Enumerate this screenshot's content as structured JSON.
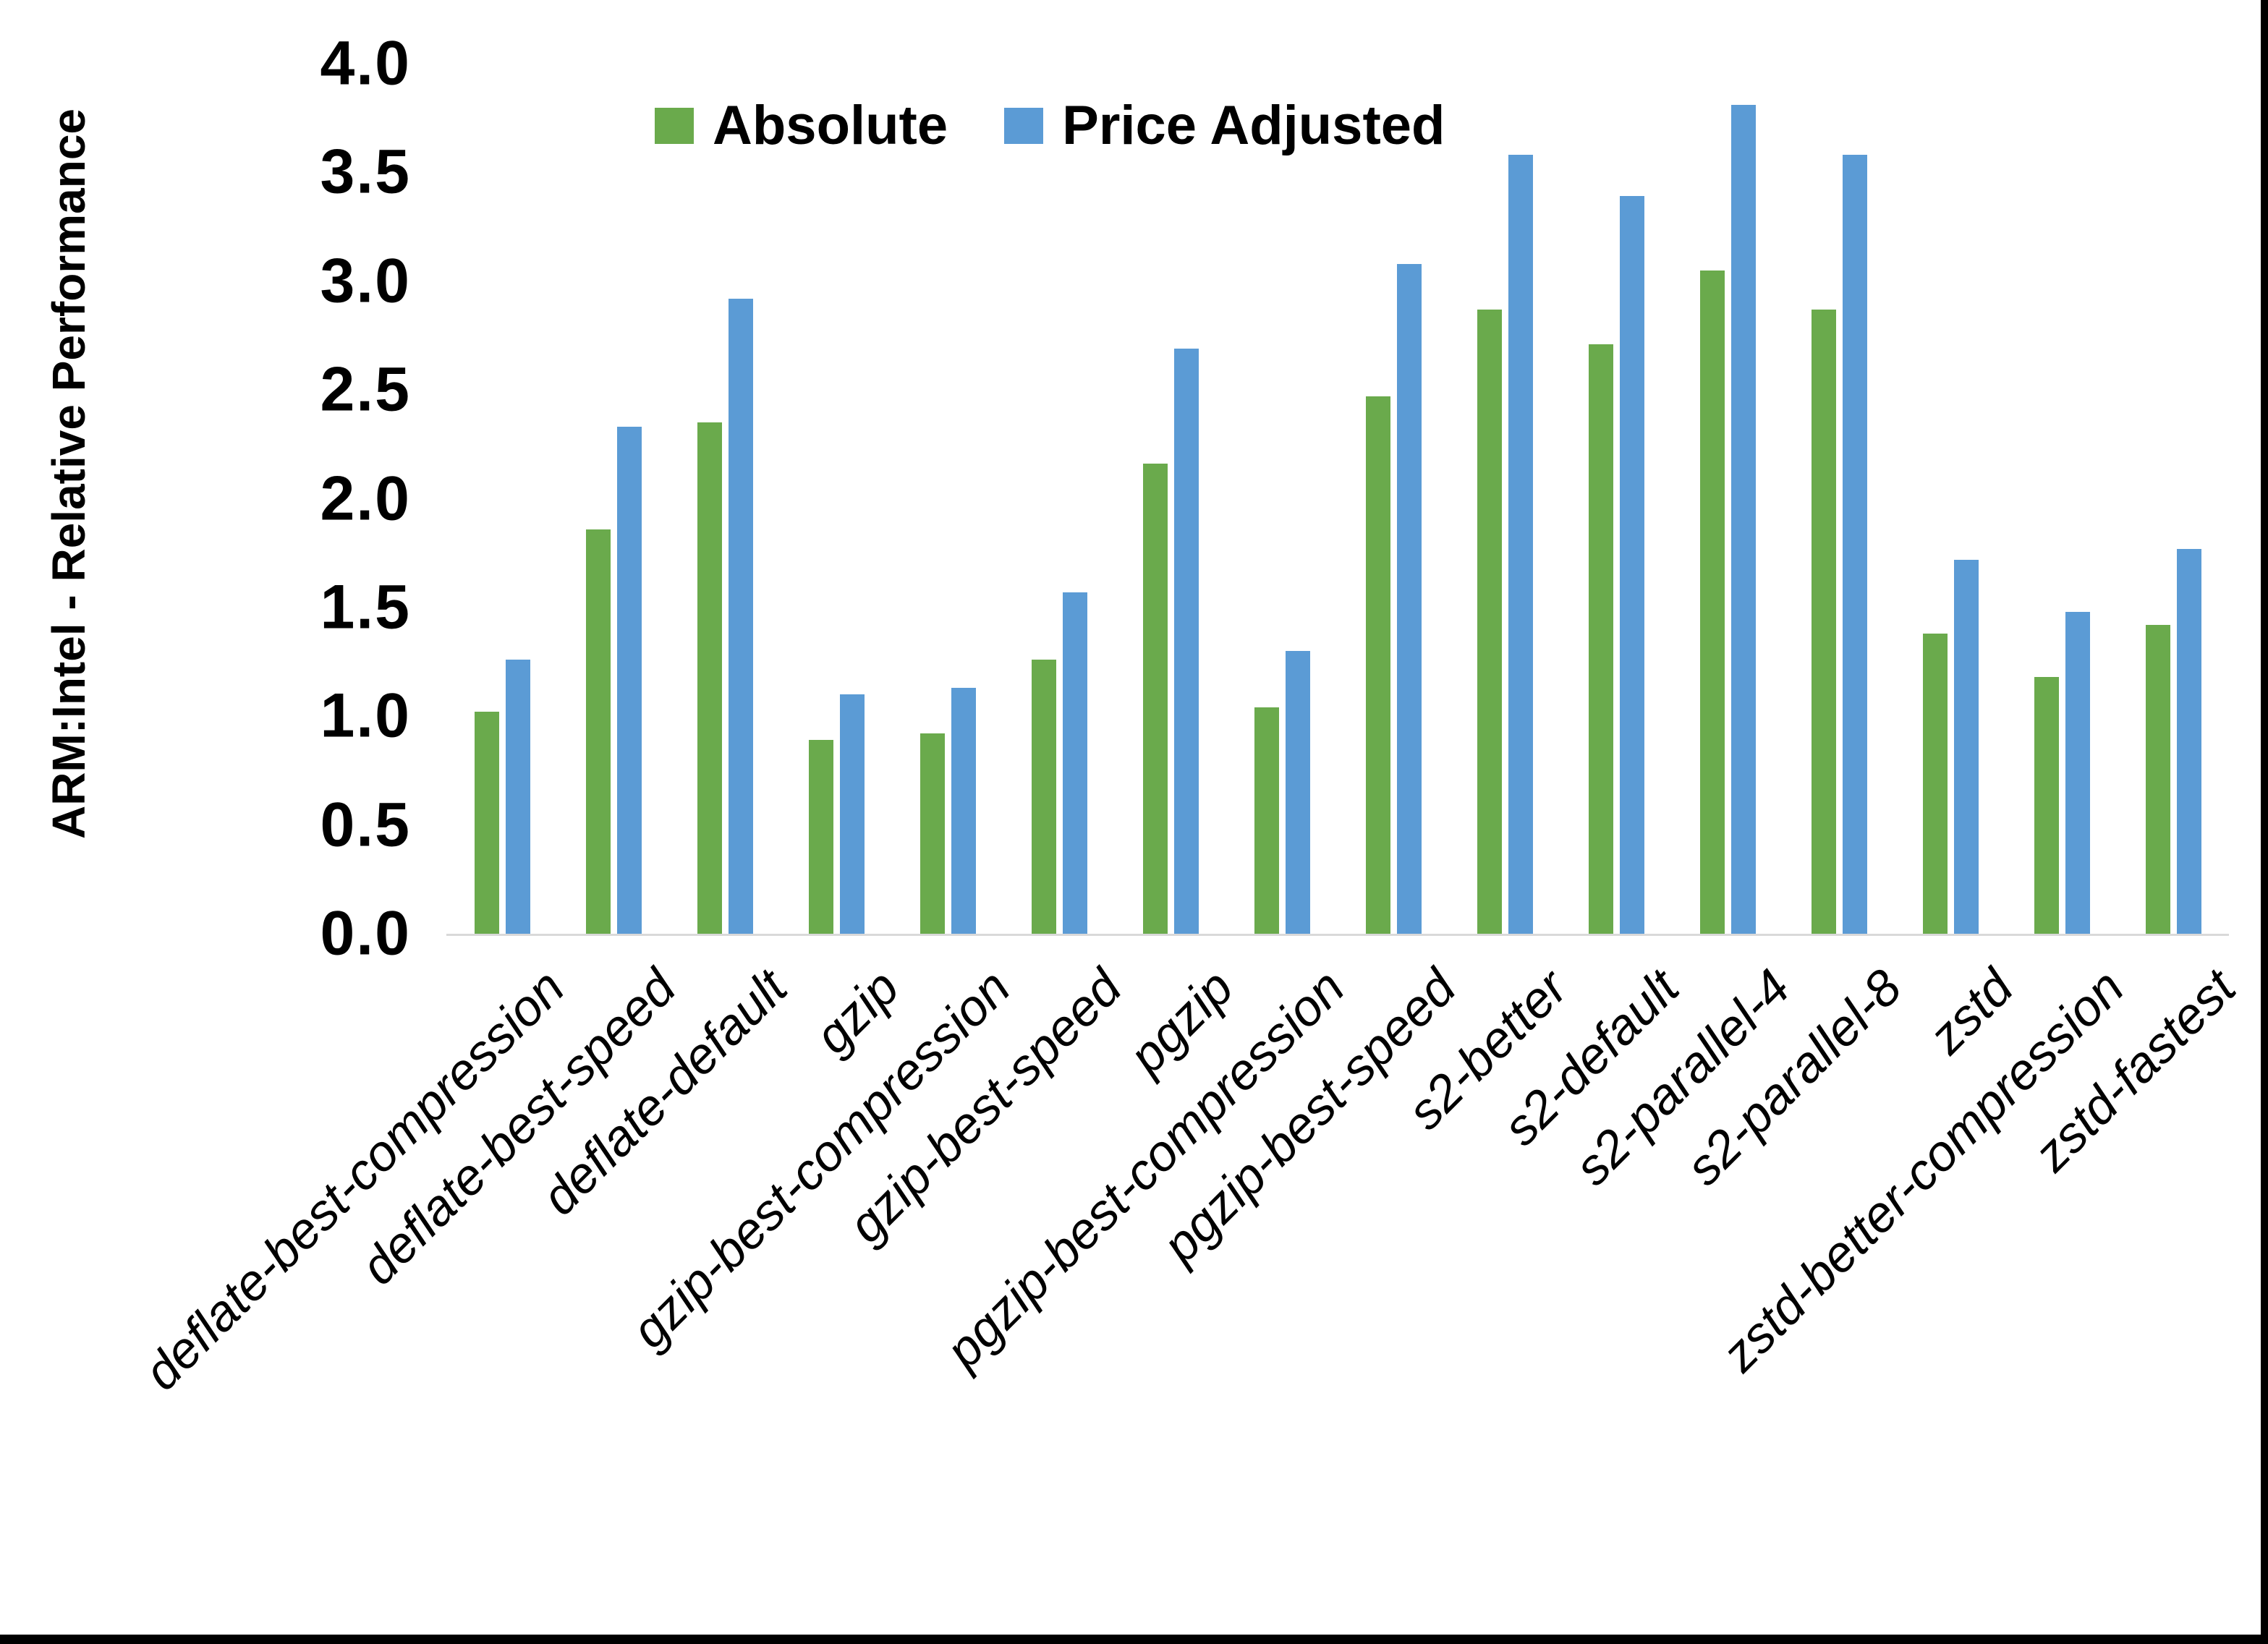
{
  "chart_data": {
    "type": "bar",
    "title": "",
    "xlabel": "",
    "ylabel": "ARM:Intel - Relative Performance",
    "ylim": [
      0.0,
      4.0
    ],
    "ytick_labels": [
      "4.0",
      "3.5",
      "3.0",
      "2.5",
      "2.0",
      "1.5",
      "1.0",
      "0.5",
      "0.0"
    ],
    "grid": false,
    "legend_position": "top-center-inside",
    "categories": [
      "deflate-best-compression",
      "deflate-best-speed",
      "deflate-default",
      "gzip",
      "gzip-best-compression",
      "gzip-best-speed",
      "pgzip",
      "pgzip-best-compression",
      "pgzip-best-speed",
      "s2-better",
      "s2-default",
      "s2-parallel-4",
      "s2-parallel-8",
      "zstd",
      "zstd-better-compression",
      "zstd-fastest"
    ],
    "series": [
      {
        "name": "Absolute",
        "color": "#6aaa4c",
        "values": [
          1.02,
          1.86,
          2.35,
          0.89,
          0.92,
          1.26,
          2.16,
          1.04,
          2.47,
          2.87,
          2.71,
          3.05,
          2.87,
          1.38,
          1.18,
          1.42
        ]
      },
      {
        "name": "Price Adjusted",
        "color": "#5b9bd5",
        "values": [
          1.26,
          2.33,
          2.92,
          1.1,
          1.13,
          1.57,
          2.69,
          1.3,
          3.08,
          3.58,
          3.39,
          3.81,
          3.58,
          1.72,
          1.48,
          1.77
        ]
      }
    ]
  },
  "colors": {
    "background": "#ffffff",
    "axis_line": "#d9d9d9",
    "text": "#000000",
    "border": "#000000"
  }
}
